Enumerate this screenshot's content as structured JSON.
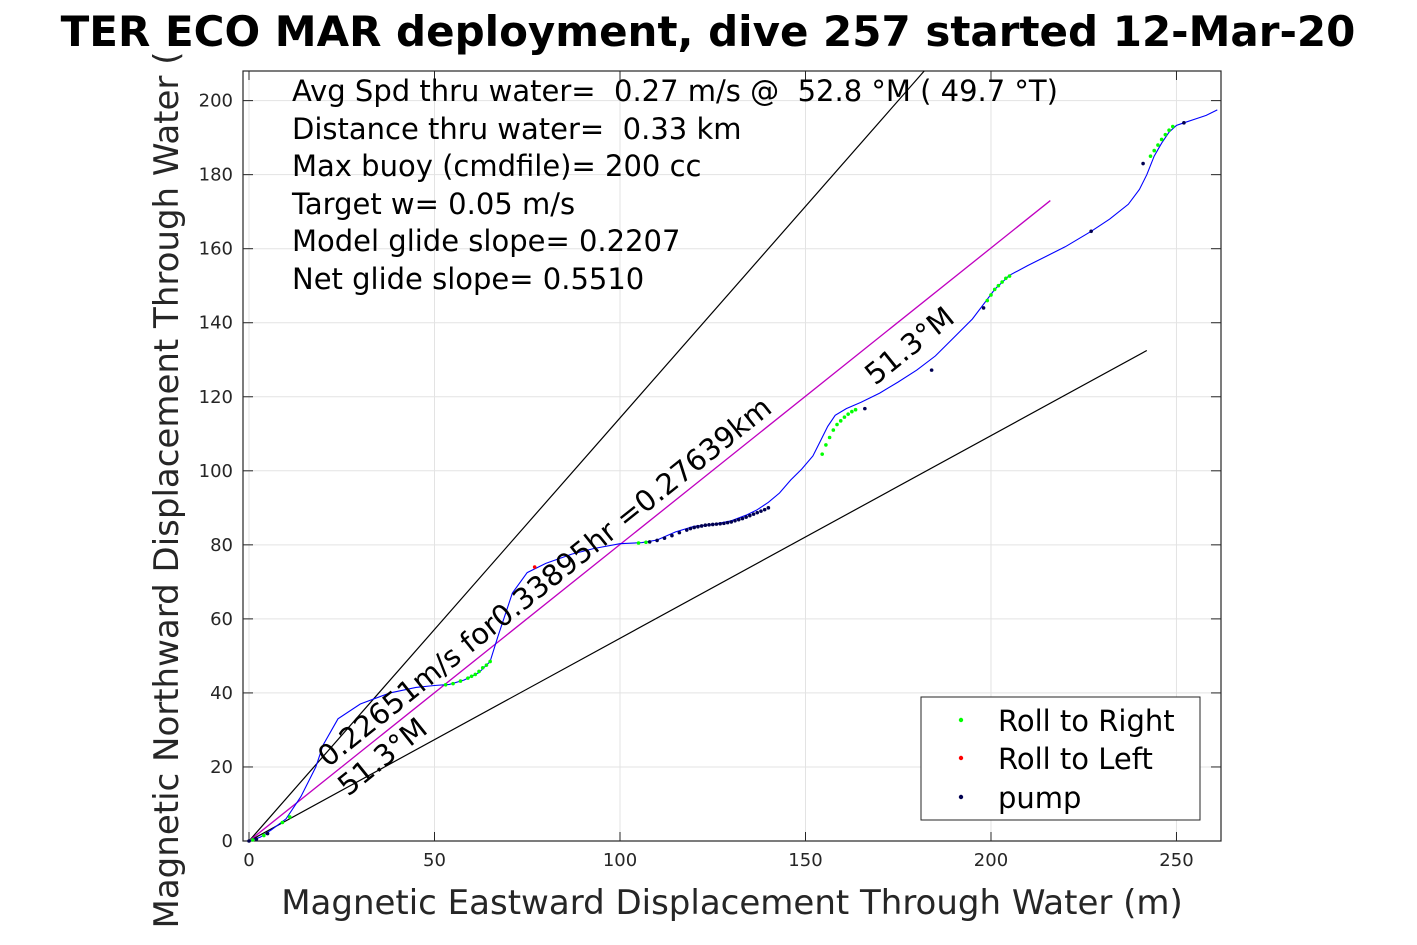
{
  "chart_data": {
    "type": "scatter",
    "title": "TER ECO MAR deployment, dive 257 started 12-Mar-20",
    "xlabel": "Magnetic Eastward Displacement Through Water (m)",
    "ylabel": "Magnetic Northward Displacement Through Water (",
    "xlim": [
      0,
      262
    ],
    "ylim": [
      0,
      208
    ],
    "x_ticks": [
      0,
      50,
      100,
      150,
      200,
      250
    ],
    "y_ticks": [
      0,
      20,
      40,
      60,
      80,
      100,
      120,
      140,
      160,
      180,
      200
    ],
    "grid": true,
    "legend_position": "bottom-right",
    "info_lines": [
      "Avg Spd thru water=  0.27 m/s @  52.8 °M ( 49.7 °T)",
      "Distance thru water=  0.33 km",
      "Max buoy (cmdfile)= 200 cc",
      "Target w= 0.05 m/s",
      "Model glide slope= 0.2207",
      "Net glide slope= 0.5510"
    ],
    "annotations": {
      "speed": "0.22651m/s for0.33895hr =0.27639km",
      "heading_lower": "51.3°M",
      "heading_upper": "51.3°M"
    },
    "colors": {
      "track": "#0000ff",
      "heading_line": "#c000c0",
      "cone_lines": "#000000",
      "roll_right": "#00ff00",
      "roll_left": "#ff0000",
      "pump": "#000050"
    },
    "lines": {
      "heading": {
        "x": [
          0,
          216
        ],
        "y": [
          0,
          173
        ]
      },
      "cone_upper": {
        "x": [
          0,
          182
        ],
        "y": [
          0,
          208
        ]
      },
      "cone_lower": {
        "x": [
          0,
          242
        ],
        "y": [
          0,
          132.5
        ]
      }
    },
    "track": {
      "x": [
        0,
        3,
        6,
        10,
        14,
        18,
        20,
        24,
        30,
        38,
        45,
        50,
        54,
        58,
        62,
        65,
        67,
        69,
        71,
        75,
        80,
        87,
        93,
        100,
        106,
        110,
        115,
        120,
        125,
        130,
        134,
        137,
        140,
        143,
        146,
        149,
        152,
        154,
        156,
        158,
        161,
        165,
        170,
        175,
        180,
        185,
        190,
        195,
        198,
        201,
        205,
        210,
        215,
        220,
        227,
        232,
        237,
        240,
        242,
        244,
        246,
        248,
        250,
        252,
        255,
        258,
        261
      ],
      "y": [
        0,
        1,
        3,
        6,
        12,
        20,
        26,
        33,
        37,
        40,
        41.5,
        42,
        42.3,
        43.5,
        45.5,
        48.5,
        55,
        61,
        67,
        72.5,
        75,
        77.5,
        79,
        80.3,
        80.6,
        81.3,
        83.5,
        85,
        85.5,
        86.5,
        88,
        89.5,
        91.5,
        94,
        97.5,
        100.5,
        104,
        108,
        112,
        115,
        116.8,
        118.5,
        121,
        124,
        127.2,
        131,
        136,
        141,
        145,
        149,
        152.8,
        155.5,
        158,
        160.5,
        164.7,
        168,
        172,
        176,
        180,
        185,
        188.5,
        191.5,
        193.3,
        194,
        195,
        196,
        197.5
      ]
    },
    "roll_right": {
      "x": [
        1,
        4,
        9,
        11,
        53,
        55,
        57,
        59,
        60,
        61,
        62,
        63,
        64,
        65,
        105,
        107,
        154.5,
        155.5,
        156.5,
        157.5,
        158.5,
        159.5,
        160.5,
        161.5,
        162.5,
        163.5,
        199,
        200,
        201,
        202,
        203,
        204,
        205,
        243,
        244,
        245,
        246,
        247,
        248,
        249
      ],
      "y": [
        0.3,
        1.5,
        5,
        6.5,
        42.2,
        42.5,
        43.2,
        44,
        44.5,
        45,
        45.8,
        46.8,
        47.5,
        48.5,
        80.5,
        80.7,
        104.5,
        107,
        109,
        111,
        112.5,
        113.5,
        114.5,
        115.3,
        116,
        116.5,
        146,
        147.5,
        149,
        150,
        151,
        152,
        152.6,
        185,
        186.5,
        188,
        189.5,
        190.8,
        192,
        193
      ]
    },
    "roll_left": {
      "x": [
        77
      ],
      "y": [
        74
      ]
    },
    "pump": {
      "x": [
        0,
        2,
        5,
        108,
        110,
        112,
        114,
        116,
        118,
        119,
        120,
        121,
        122,
        123,
        124,
        125,
        126,
        127,
        128,
        129,
        130,
        131,
        132,
        133,
        134,
        135,
        136,
        137,
        138,
        139,
        140,
        166,
        184,
        198,
        227,
        241,
        252
      ],
      "y": [
        0,
        0.5,
        2,
        80.8,
        81.2,
        81.8,
        82.5,
        83.3,
        84,
        84.4,
        84.7,
        84.9,
        85.1,
        85.3,
        85.4,
        85.5,
        85.6,
        85.7,
        85.8,
        86,
        86.2,
        86.5,
        86.8,
        87.1,
        87.5,
        87.9,
        88.3,
        88.7,
        89.1,
        89.5,
        90,
        116.8,
        127.2,
        144,
        164.7,
        183,
        194
      ]
    },
    "legend": [
      {
        "label": "Roll to Right",
        "color_key": "roll_right"
      },
      {
        "label": "Roll to Left",
        "color_key": "roll_left"
      },
      {
        "label": "pump",
        "color_key": "pump"
      }
    ]
  }
}
